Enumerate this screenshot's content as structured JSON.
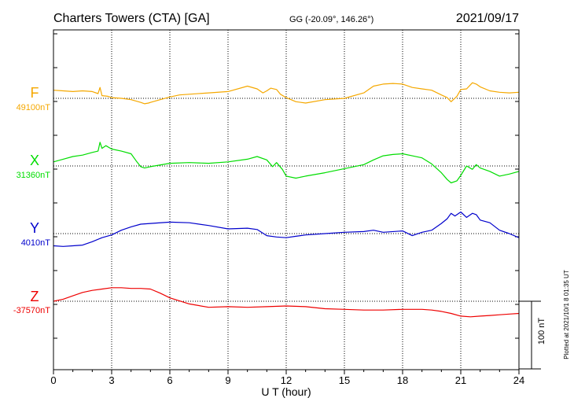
{
  "header": {
    "station": "Charters Towers (CTA)  [GA]",
    "coords": "GG (-20.09°, 146.26°)",
    "date": "2021/09/17"
  },
  "footer": {
    "plotted": "Plotted at 2021/10/1 8 01:35 UT",
    "scale": "100 nT"
  },
  "colors": {
    "F": "#f5a800",
    "X": "#00dd00",
    "Y": "#0000cc",
    "Z": "#ee0000"
  },
  "chart_data": {
    "type": "line",
    "xlabel": "U T (hour)",
    "xlim": [
      0,
      24
    ],
    "xticks": [
      0,
      3,
      6,
      9,
      12,
      15,
      18,
      21,
      24
    ],
    "x_tick_labels": [
      "0",
      "3",
      "6",
      "9",
      "12",
      "15",
      "18",
      "21",
      "24"
    ],
    "grid": true,
    "scale_bar_nT": 100,
    "units": "nT",
    "series": [
      {
        "name": "F",
        "baseline_label": "49100nT",
        "baseline_nT": 49100,
        "x": [
          0,
          0.5,
          1,
          1.5,
          2,
          2.3,
          2.4,
          2.5,
          2.8,
          3,
          3.5,
          4,
          4.5,
          4.7,
          4.9,
          5,
          5.5,
          6,
          6.5,
          7,
          8,
          9,
          10,
          10.5,
          10.8,
          11,
          11.2,
          11.5,
          11.7,
          12,
          12.5,
          13,
          14,
          15,
          16,
          16.5,
          17,
          17.5,
          18,
          18.5,
          19,
          19.5,
          20,
          20.3,
          20.5,
          20.8,
          21,
          21.3,
          21.6,
          21.8,
          22,
          22.5,
          23,
          23.5,
          24
        ],
        "values": [
          12,
          11,
          10,
          11,
          10,
          7,
          16,
          4,
          3,
          1,
          0,
          -2,
          -6,
          -8,
          -7,
          -6,
          -2,
          2,
          5,
          6,
          8,
          10,
          18,
          14,
          8,
          11,
          15,
          13,
          6,
          1,
          -5,
          -7,
          -2,
          0,
          8,
          18,
          21,
          22,
          21,
          16,
          14,
          12,
          5,
          1,
          -5,
          3,
          13,
          14,
          23,
          21,
          17,
          11,
          9,
          8,
          9
        ]
      },
      {
        "name": "X",
        "baseline_label": "31360nT",
        "baseline_nT": 31360,
        "x": [
          0,
          0.5,
          1,
          1.5,
          2,
          2.3,
          2.4,
          2.5,
          2.7,
          3,
          3.5,
          4,
          4.3,
          4.5,
          4.7,
          5,
          6,
          7,
          8,
          9,
          10,
          10.5,
          11,
          11.3,
          11.5,
          11.8,
          12,
          12.5,
          13,
          14,
          15,
          16,
          16.5,
          17,
          17.5,
          18,
          18.5,
          19,
          19.5,
          20,
          20.3,
          20.5,
          20.8,
          21,
          21.3,
          21.6,
          21.8,
          22,
          22.5,
          23,
          23.5,
          24
        ],
        "values": [
          6,
          10,
          14,
          16,
          20,
          22,
          35,
          26,
          30,
          25,
          22,
          18,
          6,
          -1,
          -3,
          -1,
          4,
          5,
          4,
          6,
          10,
          14,
          9,
          -1,
          5,
          -5,
          -15,
          -18,
          -15,
          -10,
          -4,
          2,
          9,
          15,
          17,
          18,
          15,
          12,
          3,
          -10,
          -20,
          -25,
          -22,
          -14,
          0,
          -5,
          2,
          -3,
          -8,
          -15,
          -12,
          -8
        ]
      },
      {
        "name": "Y",
        "baseline_label": "4010nT",
        "baseline_nT": 4010,
        "x": [
          0,
          0.5,
          1,
          1.5,
          2,
          2.5,
          3,
          3.5,
          4,
          4.5,
          5,
          6,
          7,
          8,
          9,
          10,
          10.5,
          11,
          11.5,
          12,
          12.5,
          13,
          14,
          15,
          16,
          16.5,
          17,
          18,
          18.5,
          19,
          19.5,
          20,
          20.3,
          20.5,
          20.7,
          21,
          21.3,
          21.6,
          21.8,
          22,
          22.5,
          23,
          23.5,
          24
        ],
        "values": [
          -18,
          -19,
          -18,
          -17,
          -12,
          -6,
          -2,
          5,
          10,
          14,
          15,
          17,
          16,
          12,
          7,
          8,
          6,
          -3,
          -5,
          -6,
          -4,
          -2,
          0,
          2,
          3,
          5,
          2,
          4,
          -3,
          2,
          5,
          15,
          22,
          30,
          26,
          32,
          24,
          30,
          28,
          20,
          16,
          5,
          0,
          -6
        ]
      },
      {
        "name": "Z",
        "baseline_label": "-37570nT",
        "baseline_nT": -37570,
        "x": [
          0,
          0.5,
          1,
          1.5,
          2,
          2.5,
          3,
          3.5,
          4,
          4.5,
          5,
          5.5,
          6,
          7,
          8,
          9,
          10,
          11,
          12,
          13,
          14,
          15,
          16,
          17,
          18,
          19,
          19.5,
          20,
          20.5,
          21,
          21.5,
          22,
          22.5,
          23,
          23.5,
          24
        ],
        "values": [
          0,
          3,
          8,
          13,
          16,
          18,
          20,
          20,
          19,
          19,
          18,
          12,
          5,
          -4,
          -9,
          -8,
          -9,
          -8,
          -7,
          -8,
          -11,
          -12,
          -13,
          -13,
          -12,
          -12,
          -13,
          -15,
          -18,
          -22,
          -23,
          -22,
          -21,
          -20,
          -19,
          -18
        ]
      }
    ]
  }
}
